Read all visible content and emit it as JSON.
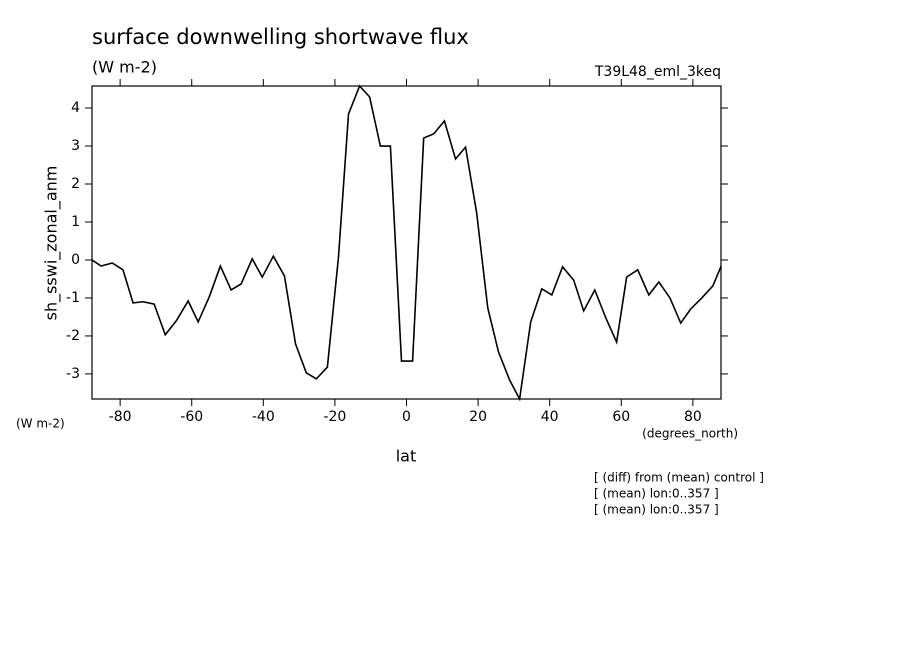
{
  "chart_data": {
    "type": "line",
    "title": "surface downwelling shortwave flux",
    "subtitle": "(W m-2)",
    "annotation": "T39L48_eml_3keq",
    "y_label": "sh_sswi_zonal_anm",
    "y_units": "(W m-2)",
    "x_label": "lat",
    "x_units": "(degrees_north)",
    "notes": [
      "[ (diff) from (mean) control ]",
      "[ (mean) lon:0..357 ]",
      "[ (mean) lon:0..357 ]"
    ],
    "x": [
      -87.9,
      -85.3,
      -82.2,
      -79.2,
      -76.4,
      -73.6,
      -70.5,
      -67.4,
      -64.3,
      -61,
      -58.2,
      -55.1,
      -52,
      -49,
      -46.2,
      -43.1,
      -40.3,
      -37.2,
      -34.1,
      -31,
      -28,
      -25.2,
      -22.1,
      -19,
      -16.2,
      -13.1,
      -10.3,
      -7.3,
      -4.5,
      -1.4,
      1.7,
      4.8,
      7.6,
      10.6,
      13.7,
      16.5,
      19.6,
      22.7,
      25.7,
      28.8,
      31.6,
      34.7,
      37.8,
      40.6,
      43.6,
      46.7,
      49.5,
      52.6,
      55.7,
      58.7,
      61.5,
      64.6,
      67.7,
      70.5,
      73.6,
      76.6,
      79.4,
      82.5,
      85.6,
      87.9
    ],
    "series": [
      {
        "color": "#000000",
        "values": [
          0,
          -0.16,
          -0.08,
          -0.26,
          -1.13,
          -1.1,
          -1.16,
          -1.97,
          -1.6,
          -1.08,
          -1.63,
          -0.97,
          -0.16,
          -0.79,
          -0.63,
          0.03,
          -0.45,
          0.1,
          -0.42,
          -2.21,
          -2.97,
          -3.13,
          -2.82,
          0.08,
          3.84,
          4.58,
          4.29,
          3.0,
          3.0,
          -2.66,
          -2.66,
          3.21,
          3.32,
          3.66,
          2.66,
          2.97,
          1.24,
          -1.26,
          -2.42,
          -3.16,
          -3.66,
          -1.63,
          -0.76,
          -0.92,
          -0.18,
          -0.53,
          -1.34,
          -0.79,
          -1.53,
          -2.16,
          -0.45,
          -0.26,
          -0.92,
          -0.58,
          -1.0,
          -1.66,
          -1.29,
          -1.0,
          -0.68,
          -0.16
        ]
      }
    ],
    "xlim": [
      -87.86,
      87.86
    ],
    "xticks": [
      -80,
      -60,
      -40,
      -20,
      0,
      20,
      40,
      60,
      80
    ],
    "ylim": [
      -3.66,
      4.58
    ],
    "yticks": [
      -3,
      -2,
      -1,
      0,
      1,
      2,
      3,
      4
    ]
  }
}
